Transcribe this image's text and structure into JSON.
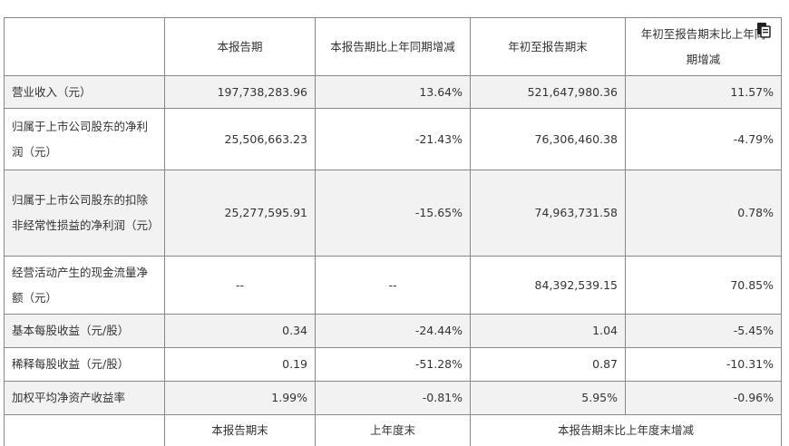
{
  "table": {
    "headers": [
      "",
      "本报告期",
      "本报告期比上年同期增减",
      "年初至报告期末",
      "年初至报告期末比上年同期增减"
    ],
    "header_last_line1": "年初至报告期末比上年同",
    "header_last_line2": "期增减",
    "rows": [
      {
        "label": "营业收入（元）",
        "cells": [
          "197,738,283.96",
          "13.64%",
          "521,647,980.36",
          "11.57%"
        ]
      },
      {
        "label": "归属于上市公司股东的净利润（元）",
        "cells": [
          "25,506,663.23",
          "-21.43%",
          "76,306,460.38",
          "-4.79%"
        ]
      },
      {
        "label": "归属于上市公司股东的扣除非经常性损益的净利润（元）",
        "cells": [
          "25,277,595.91",
          "-15.65%",
          "74,963,731.58",
          "0.78%"
        ]
      },
      {
        "label": "经营活动产生的现金流量净额（元）",
        "cells": [
          "--",
          "--",
          "84,392,539.15",
          "70.85%"
        ]
      },
      {
        "label": "基本每股收益（元/股）",
        "cells": [
          "0.34",
          "-24.44%",
          "1.04",
          "-5.45%"
        ]
      },
      {
        "label": "稀释每股收益（元/股）",
        "cells": [
          "0.19",
          "-51.28%",
          "0.87",
          "-10.31%"
        ]
      },
      {
        "label": "加权平均净资产收益率",
        "cells": [
          "1.99%",
          "-0.81%",
          "5.95%",
          "-0.96%"
        ]
      }
    ],
    "footer": [
      "本报告期末",
      "上年度末",
      "本报告期末比上年度末增减"
    ]
  },
  "icons": {
    "copy": "copy-icon"
  }
}
